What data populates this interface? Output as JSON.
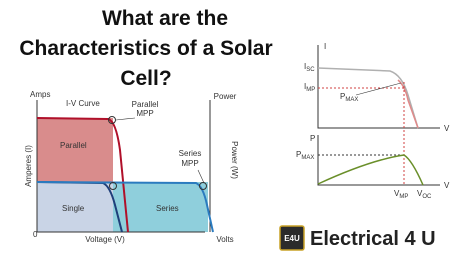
{
  "header": {
    "title_lines": [
      "What are the",
      "Characteristics of a Solar",
      "Cell?"
    ]
  },
  "left_diagram": {
    "y_axis_label": "Amps",
    "curve_label": "I-V Curve",
    "parallel_mpp": [
      "Parallel",
      "MPP"
    ],
    "power_axis_label": "Power",
    "parallel_region": "Parallel",
    "series_mpp": [
      "Series",
      "MPP"
    ],
    "y_axis_title": "Amperes (I)",
    "power_axis_title": "Power (W)",
    "single_region": "Single",
    "series_region": "Series",
    "origin": "0",
    "x_axis_title": "Voltage (V)",
    "x_axis_label": "Volts"
  },
  "right_diagram": {
    "i_axis": "I",
    "isc": {
      "main": "I",
      "sub": "SC"
    },
    "imp": {
      "main": "I",
      "sub": "MP"
    },
    "pmax_top": {
      "main": "P",
      "sub": "MAX"
    },
    "v_axis_top": "V",
    "p_axis": "P",
    "pmax_bottom": {
      "main": "P",
      "sub": "MAX"
    },
    "v_axis_bottom": "V",
    "vmp": {
      "main": "V",
      "sub": "MP"
    },
    "voc": {
      "main": "V",
      "sub": "OC"
    }
  },
  "logo": {
    "badge": "E4U",
    "name": "Electrical 4 U"
  }
}
